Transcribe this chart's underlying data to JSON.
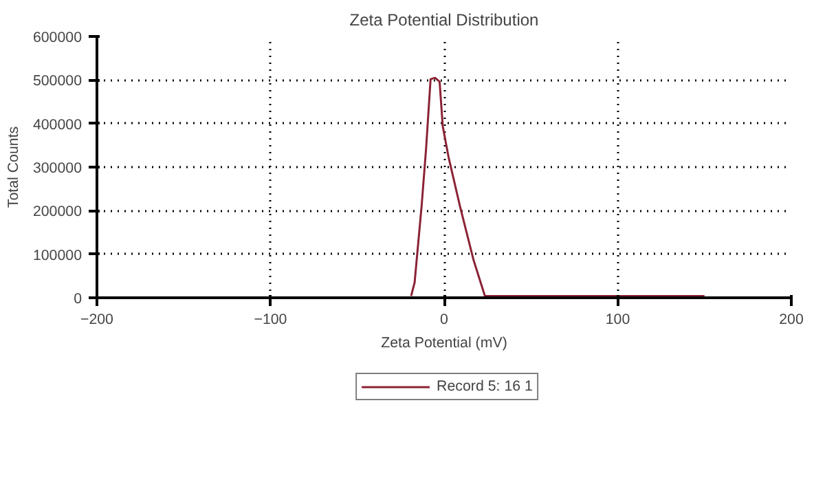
{
  "chart_data": {
    "type": "line",
    "title": "Zeta Potential Distribution",
    "xlabel": "Zeta Potential (mV)",
    "ylabel": "Total Counts",
    "xlim": [
      -200,
      200
    ],
    "xticks": [
      -200,
      -100,
      0,
      100,
      200
    ],
    "ylim": [
      0,
      600000
    ],
    "yticks": [
      0,
      100000,
      200000,
      300000,
      400000,
      500000,
      600000
    ],
    "grid": true,
    "legend": "bottom",
    "line_style": "solid",
    "series": [
      {
        "name": "Record 5: 16 1",
        "color": "#8b2335",
        "x": [
          -19,
          -17,
          -13,
          -10.4,
          -7.8,
          -5.2,
          -2.6,
          -0.8,
          2.6,
          9.2,
          17,
          23.5,
          150
        ],
        "values": [
          4000,
          35000,
          209000,
          342000,
          502000,
          505000,
          496000,
          394000,
          322000,
          209000,
          86000,
          4000,
          4000
        ]
      }
    ]
  }
}
